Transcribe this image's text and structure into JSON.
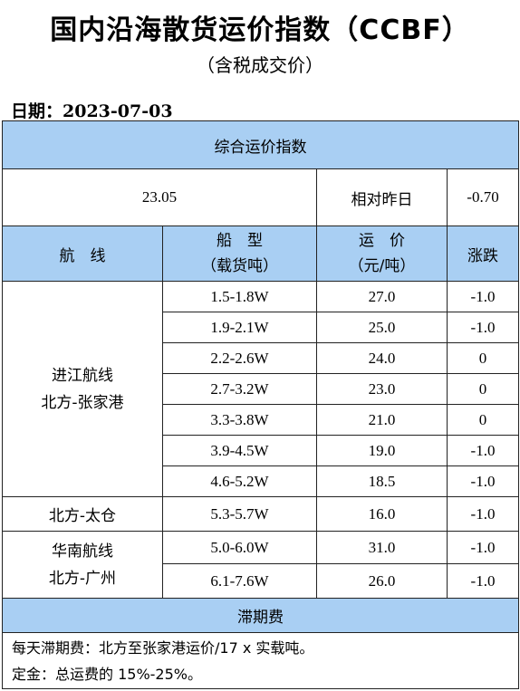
{
  "title": "国内沿海散货运价指数（CCBF）",
  "subtitle": "（含税成交价）",
  "date": {
    "label": "日期：",
    "value": "2023-07-03"
  },
  "index": {
    "header": "综合运价指数",
    "value": "23.05",
    "compare_label": "相对昨日",
    "change": "-0.70"
  },
  "columns": {
    "route": "航　线",
    "ship_line1": "船　型",
    "ship_line2": "（载货吨）",
    "rate_line1": "运　价",
    "rate_line2": "（元/吨）",
    "change": "涨跌"
  },
  "groups": [
    {
      "route_line1": "进江航线",
      "route_line2": "北方-张家港",
      "rows": [
        {
          "ship": "1.5-1.8W",
          "rate": "27.0",
          "change": "-1.0"
        },
        {
          "ship": "1.9-2.1W",
          "rate": "25.0",
          "change": "-1.0"
        },
        {
          "ship": "2.2-2.6W",
          "rate": "24.0",
          "change": "0"
        },
        {
          "ship": "2.7-3.2W",
          "rate": "23.0",
          "change": "0"
        },
        {
          "ship": "3.3-3.8W",
          "rate": "21.0",
          "change": "0"
        },
        {
          "ship": "3.9-4.5W",
          "rate": "19.0",
          "change": "-1.0"
        },
        {
          "ship": "4.6-5.2W",
          "rate": "18.5",
          "change": "-1.0"
        }
      ]
    },
    {
      "route_line1": "北方-太仓",
      "route_line2": "",
      "rows": [
        {
          "ship": "5.3-5.7W",
          "rate": "16.0",
          "change": "-1.0"
        }
      ]
    },
    {
      "route_line1": "华南航线",
      "route_line2": "北方-广州",
      "rows": [
        {
          "ship": "5.0-6.0W",
          "rate": "31.0",
          "change": "-1.0"
        },
        {
          "ship": "6.1-7.6W",
          "rate": "26.0",
          "change": "-1.0"
        }
      ]
    }
  ],
  "demurrage": {
    "header": "滞期费",
    "line1": "每天滞期费：北方至张家港运价/17 x 实载吨。",
    "line2": "定金：总运费的 15%-25%。"
  },
  "colors": {
    "header_bg": "#a9cff3",
    "border": "#222222"
  }
}
